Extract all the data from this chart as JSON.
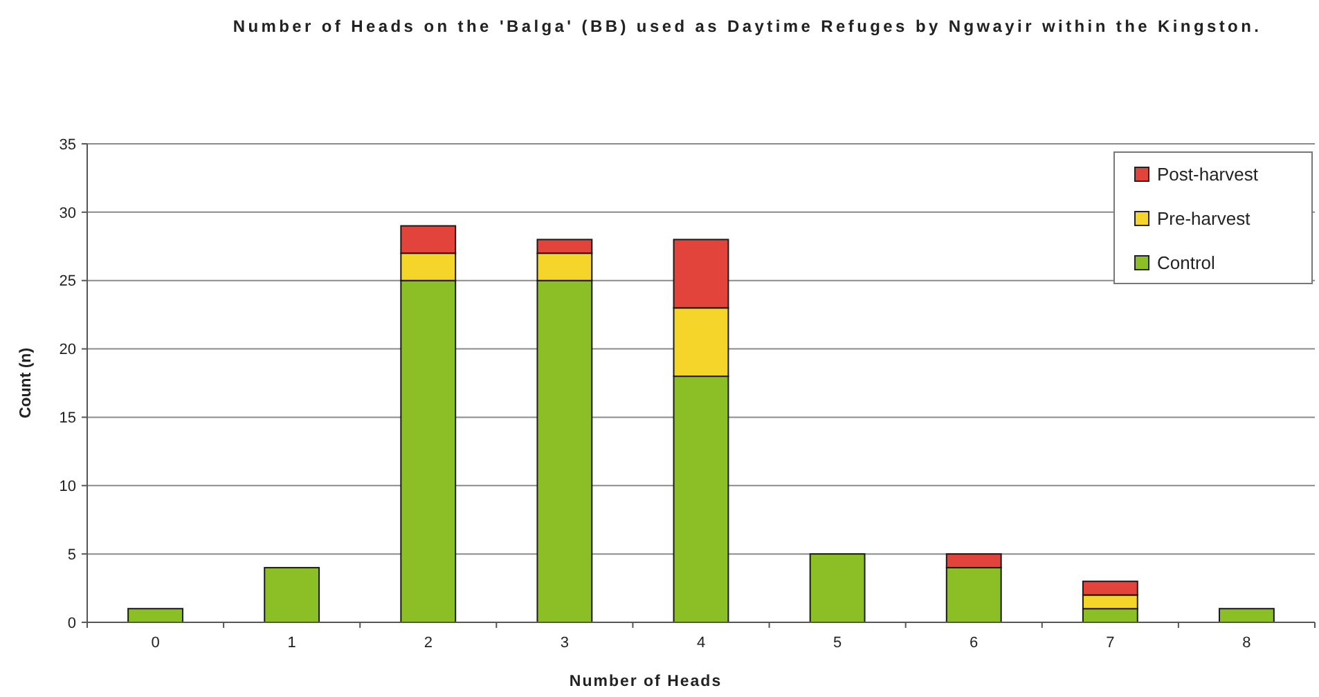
{
  "chart_data": {
    "type": "bar",
    "title": "Number of Heads on the 'Balga' (BB) used as Daytime Refuges by Ngwayir within the Kingston.",
    "xlabel": "Number of Heads",
    "ylabel": "Count (n)",
    "categories": [
      "0",
      "1",
      "2",
      "3",
      "4",
      "5",
      "6",
      "7",
      "8"
    ],
    "series": [
      {
        "name": "Control",
        "color": "#8cbf26",
        "values": [
          1,
          4,
          25,
          25,
          18,
          5,
          4,
          1,
          1
        ]
      },
      {
        "name": "Pre-harvest",
        "color": "#f6d52a",
        "values": [
          null,
          null,
          2,
          2,
          5,
          null,
          null,
          1,
          null
        ]
      },
      {
        "name": "Post-harvest",
        "color": "#e2433b",
        "values": [
          null,
          null,
          2,
          1,
          5,
          null,
          1,
          1,
          null
        ]
      }
    ],
    "stacked": true,
    "ylim": [
      0,
      35
    ],
    "yticks": [
      0,
      5,
      10,
      15,
      20,
      25,
      30,
      35
    ],
    "grid": "y",
    "legend": "top right"
  }
}
